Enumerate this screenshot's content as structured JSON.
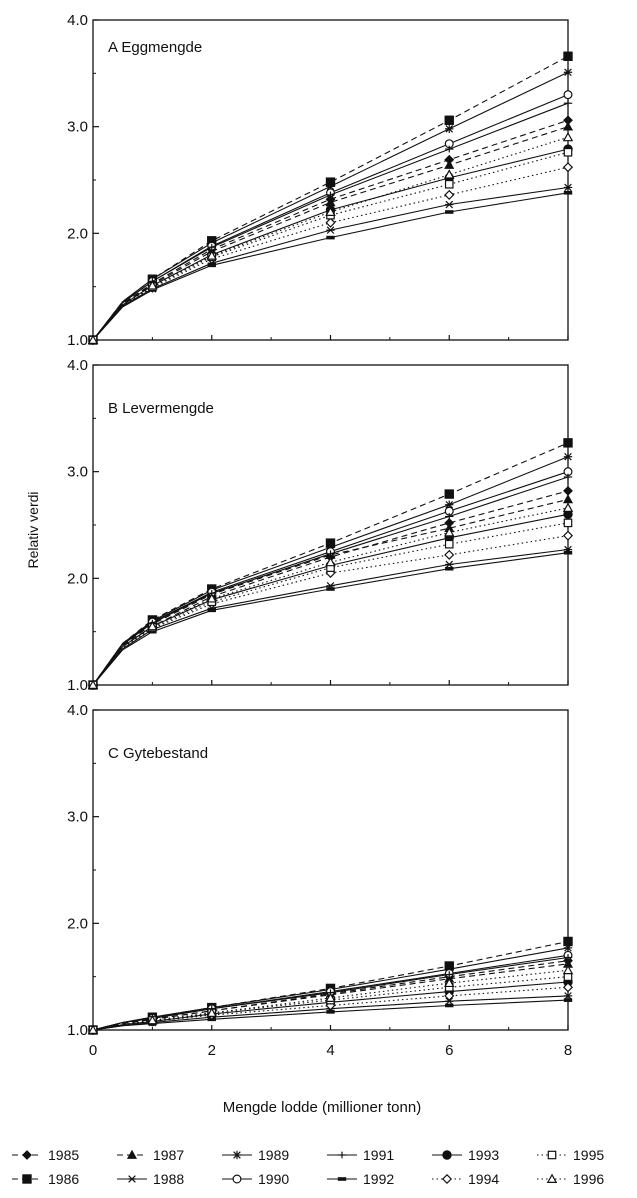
{
  "chart_data": [
    {
      "type": "line",
      "title": "A  Eggmengde",
      "x": [
        0,
        0.5,
        1,
        2,
        4,
        6,
        8
      ],
      "xlim": [
        0,
        8
      ],
      "ylim": [
        1.0,
        4.0
      ],
      "yticks": [
        "1.0",
        "2.0",
        "3.0",
        "4.0"
      ],
      "grid": false,
      "series": [
        {
          "name": "1985",
          "values": [
            1.0,
            1.34,
            1.53,
            1.85,
            2.32,
            2.69,
            3.06
          ]
        },
        {
          "name": "1986",
          "values": [
            1.0,
            1.36,
            1.57,
            1.93,
            2.48,
            3.06,
            3.66
          ]
        },
        {
          "name": "1987",
          "values": [
            1.0,
            1.34,
            1.52,
            1.83,
            2.29,
            2.64,
            3.0
          ]
        },
        {
          "name": "1988",
          "values": [
            1.0,
            1.32,
            1.48,
            1.72,
            2.03,
            2.27,
            2.43
          ]
        },
        {
          "name": "1989",
          "values": [
            1.0,
            1.36,
            1.57,
            1.91,
            2.44,
            2.98,
            3.51
          ]
        },
        {
          "name": "1990",
          "values": [
            1.0,
            1.35,
            1.55,
            1.88,
            2.38,
            2.84,
            3.3
          ]
        },
        {
          "name": "1991",
          "values": [
            1.0,
            1.35,
            1.55,
            1.87,
            2.36,
            2.79,
            3.22
          ]
        },
        {
          "name": "1992",
          "values": [
            1.0,
            1.31,
            1.47,
            1.7,
            1.96,
            2.2,
            2.38
          ]
        },
        {
          "name": "1993",
          "values": [
            1.0,
            1.33,
            1.51,
            1.8,
            2.22,
            2.52,
            2.79
          ]
        },
        {
          "name": "1994",
          "values": [
            1.0,
            1.32,
            1.49,
            1.76,
            2.1,
            2.36,
            2.62
          ]
        },
        {
          "name": "1995",
          "values": [
            1.0,
            1.33,
            1.5,
            1.78,
            2.17,
            2.46,
            2.76
          ]
        },
        {
          "name": "1996",
          "values": [
            1.0,
            1.33,
            1.51,
            1.79,
            2.2,
            2.55,
            2.9
          ]
        }
      ]
    },
    {
      "type": "line",
      "title": "B  Levermengde",
      "ylabel": "Relativ verdi",
      "x": [
        0,
        0.5,
        1,
        2,
        4,
        6,
        8
      ],
      "xlim": [
        0,
        8
      ],
      "ylim": [
        1.0,
        4.0
      ],
      "yticks": [
        "1.0",
        "2.0",
        "3.0",
        "4.0"
      ],
      "grid": false,
      "series": [
        {
          "name": "1985",
          "values": [
            1.0,
            1.36,
            1.55,
            1.83,
            2.2,
            2.52,
            2.82
          ]
        },
        {
          "name": "1986",
          "values": [
            1.0,
            1.39,
            1.61,
            1.9,
            2.33,
            2.79,
            3.27
          ]
        },
        {
          "name": "1987",
          "values": [
            1.0,
            1.37,
            1.57,
            1.85,
            2.22,
            2.47,
            2.74
          ]
        },
        {
          "name": "1988",
          "values": [
            1.0,
            1.34,
            1.52,
            1.72,
            1.93,
            2.13,
            2.27
          ]
        },
        {
          "name": "1989",
          "values": [
            1.0,
            1.39,
            1.6,
            1.89,
            2.29,
            2.69,
            3.14
          ]
        },
        {
          "name": "1990",
          "values": [
            1.0,
            1.38,
            1.59,
            1.87,
            2.25,
            2.63,
            3.0
          ]
        },
        {
          "name": "1991",
          "values": [
            1.0,
            1.38,
            1.58,
            1.86,
            2.23,
            2.58,
            2.95
          ]
        },
        {
          "name": "1992",
          "values": [
            1.0,
            1.33,
            1.5,
            1.7,
            1.9,
            2.09,
            2.24
          ]
        },
        {
          "name": "1993",
          "values": [
            1.0,
            1.36,
            1.55,
            1.8,
            2.12,
            2.38,
            2.6
          ]
        },
        {
          "name": "1994",
          "values": [
            1.0,
            1.35,
            1.53,
            1.76,
            2.05,
            2.22,
            2.4
          ]
        },
        {
          "name": "1995",
          "values": [
            1.0,
            1.36,
            1.54,
            1.78,
            2.1,
            2.32,
            2.52
          ]
        },
        {
          "name": "1996",
          "values": [
            1.0,
            1.36,
            1.55,
            1.81,
            2.15,
            2.43,
            2.66
          ]
        }
      ]
    },
    {
      "type": "line",
      "title": "C  Gytebestand",
      "xlabel": "Mengde lodde (millioner tonn)",
      "x": [
        0,
        0.5,
        1,
        2,
        4,
        6,
        8
      ],
      "xlim": [
        0,
        8
      ],
      "xticks": [
        "0",
        "2",
        "4",
        "6",
        "8"
      ],
      "ylim": [
        1.0,
        4.0
      ],
      "yticks": [
        "1.0",
        "2.0",
        "3.0",
        "4.0"
      ],
      "grid": false,
      "series": [
        {
          "name": "1985",
          "values": [
            1.0,
            1.06,
            1.1,
            1.18,
            1.34,
            1.5,
            1.65
          ]
        },
        {
          "name": "1986",
          "values": [
            1.0,
            1.07,
            1.12,
            1.21,
            1.39,
            1.6,
            1.83
          ]
        },
        {
          "name": "1987",
          "values": [
            1.0,
            1.06,
            1.1,
            1.18,
            1.33,
            1.48,
            1.62
          ]
        },
        {
          "name": "1988",
          "values": [
            1.0,
            1.04,
            1.07,
            1.12,
            1.2,
            1.27,
            1.32
          ]
        },
        {
          "name": "1989",
          "values": [
            1.0,
            1.07,
            1.12,
            1.21,
            1.38,
            1.57,
            1.77
          ]
        },
        {
          "name": "1990",
          "values": [
            1.0,
            1.07,
            1.11,
            1.2,
            1.36,
            1.53,
            1.7
          ]
        },
        {
          "name": "1991",
          "values": [
            1.0,
            1.07,
            1.11,
            1.2,
            1.35,
            1.52,
            1.68
          ]
        },
        {
          "name": "1992",
          "values": [
            1.0,
            1.04,
            1.06,
            1.1,
            1.17,
            1.23,
            1.28
          ]
        },
        {
          "name": "1993",
          "values": [
            1.0,
            1.05,
            1.08,
            1.15,
            1.26,
            1.36,
            1.45
          ]
        },
        {
          "name": "1994",
          "values": [
            1.0,
            1.05,
            1.08,
            1.14,
            1.23,
            1.32,
            1.4
          ]
        },
        {
          "name": "1995",
          "values": [
            1.0,
            1.05,
            1.09,
            1.16,
            1.28,
            1.4,
            1.5
          ]
        },
        {
          "name": "1996",
          "values": [
            1.0,
            1.05,
            1.09,
            1.16,
            1.3,
            1.44,
            1.56
          ]
        }
      ]
    }
  ],
  "legend": {
    "placement": "bottom",
    "styles": {
      "1985": {
        "marker": "diamond-filled",
        "dash": "dashed"
      },
      "1986": {
        "marker": "square-filled",
        "dash": "dashed"
      },
      "1987": {
        "marker": "triangle-filled",
        "dash": "dashed"
      },
      "1988": {
        "marker": "asterisk",
        "dash": "solid"
      },
      "1989": {
        "marker": "star",
        "dash": "solid"
      },
      "1990": {
        "marker": "circle-open",
        "dash": "solid"
      },
      "1991": {
        "marker": "plus",
        "dash": "solid"
      },
      "1992": {
        "marker": "dash",
        "dash": "solid"
      },
      "1993": {
        "marker": "circle-filled",
        "dash": "solid"
      },
      "1994": {
        "marker": "diamond-open",
        "dash": "dotted"
      },
      "1995": {
        "marker": "square-open",
        "dash": "dotted"
      },
      "1996": {
        "marker": "triangle-open",
        "dash": "dotted"
      }
    },
    "order": [
      "1985",
      "1987",
      "1989",
      "1991",
      "1993",
      "1995",
      "1986",
      "1988",
      "1990",
      "1992",
      "1994",
      "1996"
    ]
  }
}
